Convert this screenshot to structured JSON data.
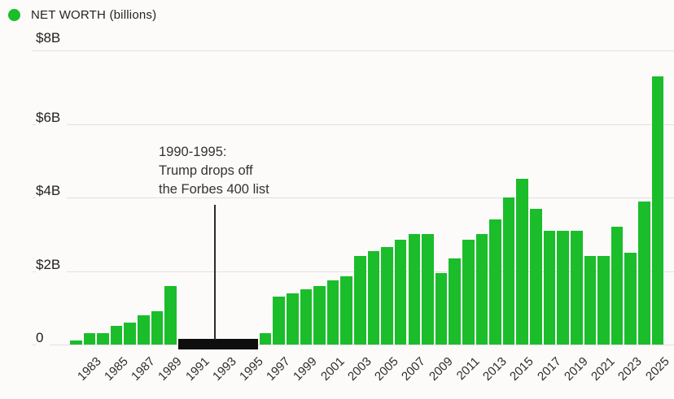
{
  "colors": {
    "bar_green": "#1bbd2b",
    "off_list_black": "#0e0e0e",
    "grid": "#e2e0dd",
    "text": "#242424",
    "background": "#fcfbf9"
  },
  "legend": {
    "label": "NET WORTH (billions)"
  },
  "annotation": {
    "lines": [
      "1990-1995:",
      "Trump drops off",
      "the Forbes 400 list"
    ]
  },
  "chart_data": {
    "type": "bar",
    "title": "NET WORTH (billions)",
    "xlabel": "",
    "ylabel": "",
    "ylim": [
      0,
      8
    ],
    "grid": true,
    "legend_position": "top-left",
    "categories": [
      1982,
      1983,
      1984,
      1985,
      1986,
      1987,
      1988,
      1989,
      1990,
      1991,
      1992,
      1993,
      1994,
      1995,
      1996,
      1997,
      1998,
      1999,
      2000,
      2001,
      2002,
      2003,
      2004,
      2005,
      2006,
      2007,
      2008,
      2009,
      2010,
      2011,
      2012,
      2013,
      2014,
      2015,
      2016,
      2017,
      2018,
      2019,
      2020,
      2021,
      2022,
      2023,
      2024,
      2025
    ],
    "values": [
      0.1,
      0.3,
      0.3,
      0.5,
      0.6,
      0.8,
      0.9,
      1.6,
      0,
      0,
      0,
      0,
      0,
      0,
      0.3,
      1.3,
      1.4,
      1.5,
      1.6,
      1.75,
      1.85,
      2.4,
      2.55,
      2.65,
      2.85,
      3.0,
      3.0,
      1.95,
      2.35,
      2.85,
      3.0,
      3.4,
      4.0,
      4.5,
      3.7,
      3.1,
      3.1,
      3.1,
      2.4,
      2.4,
      3.2,
      2.5,
      3.9,
      7.3
    ],
    "off_list_years": [
      1990,
      1991,
      1992,
      1993,
      1994,
      1995
    ],
    "off_list_note": "1990-1995: Trump drops off the Forbes 400 list",
    "ytick_values": [
      8,
      6,
      4,
      2,
      0
    ],
    "ytick_labels": [
      "$8B",
      "$6B",
      "$4B",
      "$2B",
      "0"
    ],
    "xtick_labels": [
      "1983",
      "1985",
      "1987",
      "1989",
      "1991",
      "1993",
      "1995",
      "1997",
      "1999",
      "2001",
      "2003",
      "2005",
      "2007",
      "2009",
      "2011",
      "2013",
      "2015",
      "2017",
      "2019",
      "2021",
      "2023",
      "2025"
    ]
  }
}
